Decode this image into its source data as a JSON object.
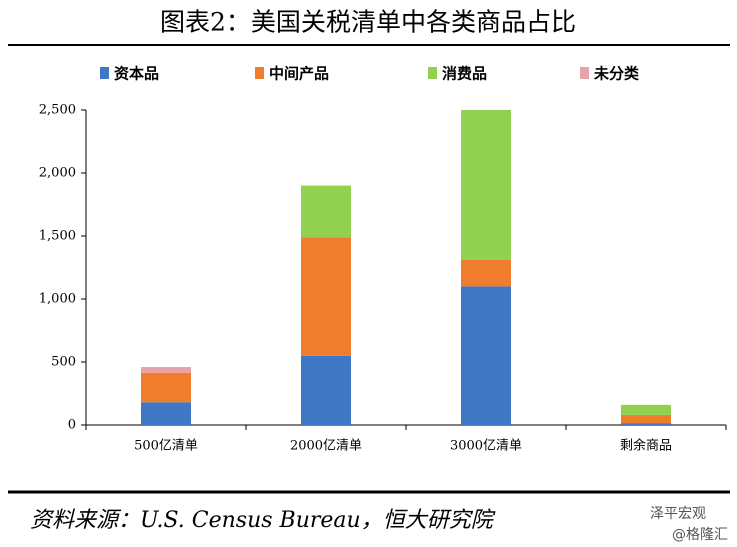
{
  "chart_data": {
    "type": "stacked-bar",
    "title": "图表2：美国关税清单中各类商品占比",
    "categories": [
      "500亿清单",
      "2000亿清单",
      "3000亿清单",
      "剩余商品"
    ],
    "series": [
      {
        "name": "资本品",
        "color": "#3f77c4",
        "values": [
          180,
          550,
          1100,
          15
        ]
      },
      {
        "name": "中间产品",
        "color": "#f07d2c",
        "values": [
          235,
          940,
          210,
          65
        ]
      },
      {
        "name": "消费品",
        "color": "#92d050",
        "values": [
          0,
          410,
          1190,
          80
        ]
      },
      {
        "name": "未分类",
        "color": "#e8a2aa",
        "values": [
          45,
          0,
          0,
          0
        ]
      }
    ],
    "ylim": [
      0,
      2500
    ],
    "yticks": [
      0,
      500,
      {
        "value": 1000,
        "label": "1,000"
      },
      {
        "value": 1500,
        "label": "1,500"
      },
      {
        "value": 2000,
        "label": "2,000"
      },
      {
        "value": 2500,
        "label": "2,500"
      }
    ],
    "legend": "top",
    "source": "资料来源：U.S. Census Bureau，恒大研究院",
    "watermark": [
      "泽平宏观",
      "@格隆汇"
    ]
  }
}
